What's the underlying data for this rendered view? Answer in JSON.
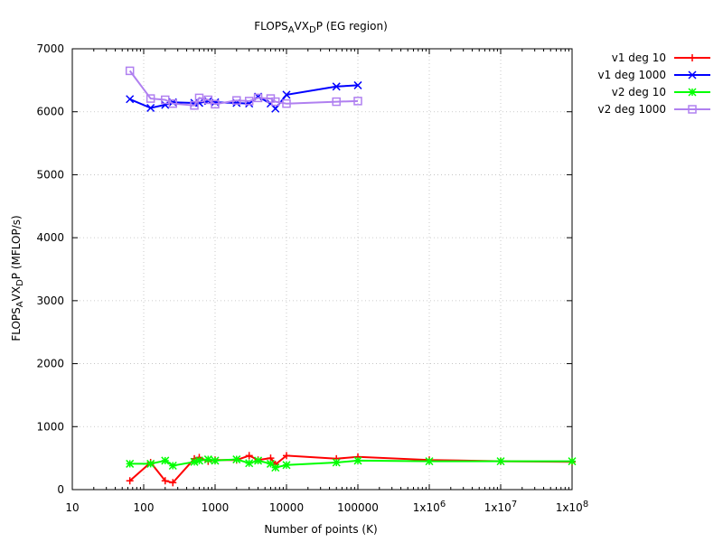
{
  "chart_data": {
    "type": "line",
    "title": "FLOPS_AVX_DP (EG region)",
    "xlabel": "Number of points (K)",
    "ylabel": "FLOPS_AVX_DP (MFLOP/s)",
    "x_scale": "log",
    "xlim": [
      10,
      100000000
    ],
    "ylim": [
      0,
      7000
    ],
    "x_ticks": [
      10,
      100,
      1000,
      10000,
      100000,
      1000000,
      10000000,
      100000000
    ],
    "x_tick_labels": [
      "10",
      "100",
      "1000",
      "10000",
      "100000",
      "1x10^6",
      "1x10^7",
      "1x10^8"
    ],
    "y_ticks": [
      0,
      1000,
      2000,
      3000,
      4000,
      5000,
      6000,
      7000
    ],
    "grid": true,
    "legend_position": "outside-top-right",
    "series": [
      {
        "name": "v1 deg 10",
        "color": "#ff0000",
        "marker": "plus",
        "x": [
          64,
          125,
          200,
          256,
          512,
          600,
          800,
          1000,
          2000,
          3000,
          4000,
          6000,
          7000,
          10000,
          50000,
          100000,
          1000000,
          10000000,
          100000000
        ],
        "y": [
          140,
          430,
          140,
          110,
          490,
          510,
          450,
          470,
          470,
          540,
          470,
          500,
          400,
          540,
          490,
          520,
          470,
          450,
          440
        ]
      },
      {
        "name": "v1 deg 1000",
        "color": "#0000ff",
        "marker": "x",
        "x": [
          64,
          125,
          200,
          256,
          512,
          600,
          800,
          1000,
          2000,
          3000,
          4000,
          6000,
          7000,
          10000,
          50000,
          100000
        ],
        "y": [
          6200,
          6060,
          6110,
          6150,
          6140,
          6140,
          6170,
          6150,
          6140,
          6130,
          6240,
          6130,
          6050,
          6270,
          6400,
          6420
        ]
      },
      {
        "name": "v2 deg 10",
        "color": "#00ff00",
        "marker": "star",
        "x": [
          64,
          125,
          200,
          256,
          512,
          600,
          800,
          1000,
          2000,
          3000,
          4000,
          6000,
          7000,
          10000,
          50000,
          100000,
          1000000,
          10000000,
          100000000
        ],
        "y": [
          410,
          410,
          460,
          380,
          440,
          460,
          480,
          460,
          480,
          420,
          460,
          410,
          350,
          390,
          430,
          460,
          450,
          450,
          450
        ]
      },
      {
        "name": "v2 deg 1000",
        "color": "#b080f0",
        "marker": "square",
        "x": [
          64,
          125,
          200,
          256,
          512,
          600,
          800,
          1000,
          2000,
          3000,
          4000,
          6000,
          7000,
          10000,
          50000,
          100000
        ],
        "y": [
          6650,
          6210,
          6190,
          6130,
          6100,
          6220,
          6190,
          6120,
          6180,
          6170,
          6220,
          6210,
          6160,
          6130,
          6160,
          6170
        ]
      }
    ]
  }
}
